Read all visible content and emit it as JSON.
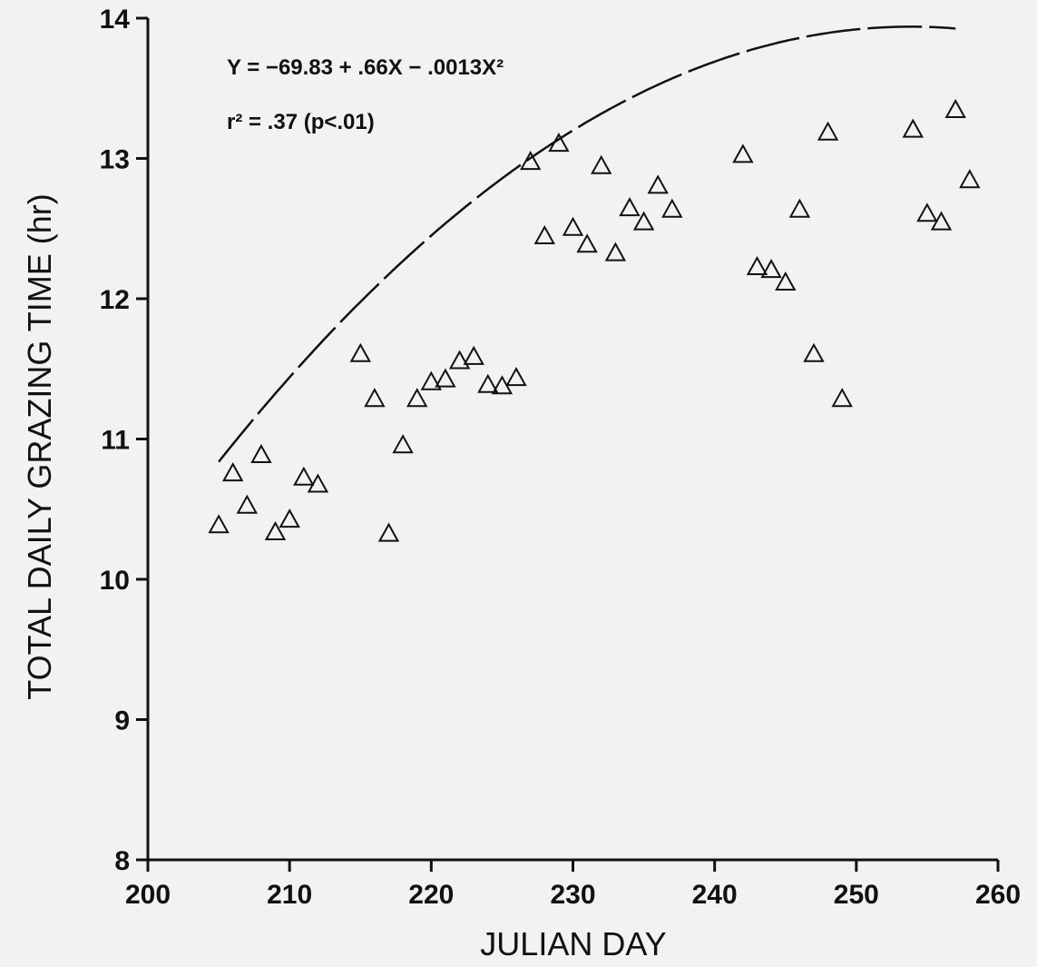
{
  "chart_data": {
    "type": "scatter",
    "title": "",
    "xlabel": "JULIAN DAY",
    "ylabel": "TOTAL DAILY GRAZING TIME (hr)",
    "xlim": [
      200,
      260
    ],
    "ylim": [
      8,
      14
    ],
    "xticks": [
      "200",
      "210",
      "220",
      "230",
      "240",
      "250",
      "260"
    ],
    "yticks": [
      "8",
      "9",
      "10",
      "11",
      "12",
      "13",
      "14"
    ],
    "grid": false,
    "legend": "none",
    "marker": "open-triangle",
    "annotations": {
      "equation": "Y = −69.83 + .66X − .0013X²",
      "r2": "r² = .37  (p<.01)"
    },
    "fit": {
      "style": "dashed",
      "x_range": [
        205,
        257
      ],
      "coefficients": {
        "a": -69.83,
        "b": 0.66,
        "c": -0.0013
      }
    },
    "points": [
      [
        205,
        10.38
      ],
      [
        206,
        10.75
      ],
      [
        207,
        10.52
      ],
      [
        208,
        10.88
      ],
      [
        209,
        10.33
      ],
      [
        210,
        10.42
      ],
      [
        211,
        10.72
      ],
      [
        212,
        10.67
      ],
      [
        215,
        11.6
      ],
      [
        216,
        11.28
      ],
      [
        217,
        10.32
      ],
      [
        218,
        10.95
      ],
      [
        219,
        11.28
      ],
      [
        220,
        11.4
      ],
      [
        221,
        11.42
      ],
      [
        222,
        11.55
      ],
      [
        223,
        11.58
      ],
      [
        224,
        11.38
      ],
      [
        225,
        11.37
      ],
      [
        226,
        11.43
      ],
      [
        227,
        12.97
      ],
      [
        228,
        12.44
      ],
      [
        229,
        13.1
      ],
      [
        230,
        12.5
      ],
      [
        231,
        12.38
      ],
      [
        232,
        12.94
      ],
      [
        233,
        12.32
      ],
      [
        234,
        12.64
      ],
      [
        235,
        12.54
      ],
      [
        236,
        12.8
      ],
      [
        237,
        12.63
      ],
      [
        242,
        13.02
      ],
      [
        243,
        12.22
      ],
      [
        244,
        12.2
      ],
      [
        245,
        12.11
      ],
      [
        246,
        12.63
      ],
      [
        247,
        11.6
      ],
      [
        248,
        13.18
      ],
      [
        249,
        11.28
      ],
      [
        254,
        13.2
      ],
      [
        255,
        12.6
      ],
      [
        256,
        12.54
      ],
      [
        257,
        13.34
      ],
      [
        258,
        12.84
      ]
    ]
  }
}
